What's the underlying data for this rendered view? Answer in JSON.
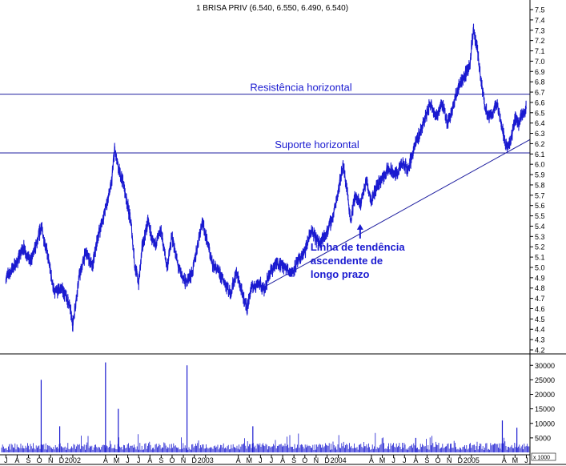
{
  "chart_data": {
    "type": "line",
    "title": "1 BRISA PRIV (6.540, 6.550, 6.490, 6.540)",
    "series": [
      {
        "name": "",
        "points": [
          [
            "2001-07-15",
            4.9
          ],
          [
            "2001-08-15",
            5.05
          ],
          [
            "2001-09-01",
            5.2
          ],
          [
            "2001-09-20",
            5.05
          ],
          [
            "2001-10-10",
            5.25
          ],
          [
            "2001-10-20",
            5.4
          ],
          [
            "2001-11-05",
            5.15
          ],
          [
            "2001-11-25",
            4.75
          ],
          [
            "2001-12-15",
            4.8
          ],
          [
            "2002-01-05",
            4.65
          ],
          [
            "2002-01-15",
            4.45
          ],
          [
            "2002-02-01",
            4.9
          ],
          [
            "2002-02-20",
            5.15
          ],
          [
            "2002-03-10",
            5.0
          ],
          [
            "2002-03-25",
            5.3
          ],
          [
            "2002-04-10",
            5.5
          ],
          [
            "2002-05-01",
            5.8
          ],
          [
            "2002-05-10",
            6.15
          ],
          [
            "2002-05-20",
            5.95
          ],
          [
            "2002-06-01",
            5.85
          ],
          [
            "2002-06-15",
            5.6
          ],
          [
            "2002-06-25",
            5.4
          ],
          [
            "2002-07-05",
            5.0
          ],
          [
            "2002-07-15",
            4.85
          ],
          [
            "2002-07-25",
            5.2
          ],
          [
            "2002-08-10",
            5.45
          ],
          [
            "2002-08-25",
            5.2
          ],
          [
            "2002-09-15",
            5.35
          ],
          [
            "2002-10-01",
            5.0
          ],
          [
            "2002-10-15",
            5.3
          ],
          [
            "2002-11-01",
            5.0
          ],
          [
            "2002-11-20",
            4.85
          ],
          [
            "2002-12-10",
            4.95
          ],
          [
            "2003-01-05",
            5.45
          ],
          [
            "2003-01-20",
            5.25
          ],
          [
            "2003-02-01",
            5.05
          ],
          [
            "2003-02-20",
            4.95
          ],
          [
            "2003-03-10",
            4.85
          ],
          [
            "2003-03-25",
            4.75
          ],
          [
            "2003-04-10",
            4.95
          ],
          [
            "2003-04-25",
            4.75
          ],
          [
            "2003-05-10",
            4.6
          ],
          [
            "2003-05-20",
            4.8
          ],
          [
            "2003-06-10",
            4.85
          ],
          [
            "2003-06-25",
            4.78
          ],
          [
            "2003-07-10",
            4.95
          ],
          [
            "2003-08-01",
            5.05
          ],
          [
            "2003-08-20",
            5.0
          ],
          [
            "2003-09-10",
            4.95
          ],
          [
            "2003-09-25",
            5.05
          ],
          [
            "2003-10-15",
            5.15
          ],
          [
            "2003-11-01",
            5.35
          ],
          [
            "2003-11-20",
            5.25
          ],
          [
            "2003-12-10",
            5.3
          ],
          [
            "2004-01-01",
            5.5
          ],
          [
            "2004-01-15",
            5.75
          ],
          [
            "2004-01-28",
            6.0
          ],
          [
            "2004-02-08",
            5.75
          ],
          [
            "2004-02-18",
            5.45
          ],
          [
            "2004-03-01",
            5.7
          ],
          [
            "2004-03-15",
            5.6
          ],
          [
            "2004-04-01",
            5.85
          ],
          [
            "2004-04-15",
            5.65
          ],
          [
            "2004-05-01",
            5.8
          ],
          [
            "2004-06-01",
            5.95
          ],
          [
            "2004-06-20",
            5.9
          ],
          [
            "2004-07-10",
            6.0
          ],
          [
            "2004-07-25",
            5.95
          ],
          [
            "2004-08-10",
            6.15
          ],
          [
            "2004-08-25",
            6.3
          ],
          [
            "2004-09-10",
            6.45
          ],
          [
            "2004-09-25",
            6.6
          ],
          [
            "2004-10-10",
            6.45
          ],
          [
            "2004-10-25",
            6.6
          ],
          [
            "2004-11-10",
            6.4
          ],
          [
            "2004-11-25",
            6.55
          ],
          [
            "2004-12-10",
            6.75
          ],
          [
            "2004-12-25",
            6.85
          ],
          [
            "2005-01-10",
            6.95
          ],
          [
            "2005-01-20",
            7.3
          ],
          [
            "2005-02-01",
            7.1
          ],
          [
            "2005-02-10",
            6.8
          ],
          [
            "2005-02-20",
            6.6
          ],
          [
            "2005-03-01",
            6.45
          ],
          [
            "2005-03-15",
            6.5
          ],
          [
            "2005-03-25",
            6.6
          ],
          [
            "2005-04-05",
            6.45
          ],
          [
            "2005-04-15",
            6.25
          ],
          [
            "2005-04-25",
            6.15
          ],
          [
            "2005-05-05",
            6.25
          ],
          [
            "2005-05-15",
            6.45
          ],
          [
            "2005-05-25",
            6.4
          ],
          [
            "2005-06-05",
            6.5
          ],
          [
            "2005-06-15",
            6.54
          ]
        ]
      }
    ],
    "volume": [
      [
        "2001-10-20",
        25000
      ],
      [
        "2001-12-10",
        9000
      ],
      [
        "2002-04-15",
        31000
      ],
      [
        "2002-05-20",
        15000
      ],
      [
        "2002-11-25",
        30000
      ],
      [
        "2003-05-25",
        9000
      ],
      [
        "2004-08-15",
        5000
      ],
      [
        "2005-04-10",
        11000
      ],
      [
        "2005-05-20",
        8500
      ]
    ],
    "price_axis": {
      "ylim": [
        4.2,
        7.5
      ],
      "ticks": [
        "7.5",
        "7.4",
        "7.3",
        "7.2",
        "7.1",
        "7.0",
        "6.9",
        "6.8",
        "6.7",
        "6.6",
        "6.5",
        "6.4",
        "6.3",
        "6.2",
        "6.1",
        "6.0",
        "5.9",
        "5.8",
        "5.7",
        "5.6",
        "5.5",
        "5.4",
        "5.3",
        "5.2",
        "5.1",
        "5.0",
        "4.9",
        "4.8",
        "4.7",
        "4.6",
        "4.5",
        "4.4",
        "4.3",
        "4.2"
      ]
    },
    "volume_axis": {
      "ylim": [
        0,
        32000
      ],
      "ticks": [
        "30000",
        "25000",
        "20000",
        "15000",
        "10000",
        "5000"
      ],
      "unit_label": "x 1000"
    },
    "x_axis": {
      "range": [
        "2001-07-01",
        "2005-06-25"
      ],
      "ticks": [
        {
          "date": "2001-07-15",
          "label": "J"
        },
        {
          "date": "2001-08-15",
          "label": "A"
        },
        {
          "date": "2001-09-15",
          "label": "S"
        },
        {
          "date": "2001-10-15",
          "label": "O"
        },
        {
          "date": "2001-11-15",
          "label": "N"
        },
        {
          "date": "2001-12-15",
          "label": "D"
        },
        {
          "date": "2002-01-15",
          "label": "2002"
        },
        {
          "date": "2002-04-15",
          "label": "A"
        },
        {
          "date": "2002-05-15",
          "label": "M"
        },
        {
          "date": "2002-06-15",
          "label": "J"
        },
        {
          "date": "2002-07-15",
          "label": "J"
        },
        {
          "date": "2002-08-15",
          "label": "A"
        },
        {
          "date": "2002-09-15",
          "label": "S"
        },
        {
          "date": "2002-10-15",
          "label": "O"
        },
        {
          "date": "2002-11-15",
          "label": "N"
        },
        {
          "date": "2002-12-15",
          "label": "D"
        },
        {
          "date": "2003-01-15",
          "label": "2003"
        },
        {
          "date": "2003-04-15",
          "label": "A"
        },
        {
          "date": "2003-05-15",
          "label": "M"
        },
        {
          "date": "2003-06-15",
          "label": "J"
        },
        {
          "date": "2003-07-15",
          "label": "J"
        },
        {
          "date": "2003-08-15",
          "label": "A"
        },
        {
          "date": "2003-09-15",
          "label": "S"
        },
        {
          "date": "2003-10-15",
          "label": "O"
        },
        {
          "date": "2003-11-15",
          "label": "N"
        },
        {
          "date": "2003-12-15",
          "label": "D"
        },
        {
          "date": "2004-01-15",
          "label": "2004"
        },
        {
          "date": "2004-04-15",
          "label": "A"
        },
        {
          "date": "2004-05-15",
          "label": "M"
        },
        {
          "date": "2004-06-15",
          "label": "J"
        },
        {
          "date": "2004-07-15",
          "label": "J"
        },
        {
          "date": "2004-08-15",
          "label": "A"
        },
        {
          "date": "2004-09-15",
          "label": "S"
        },
        {
          "date": "2004-10-15",
          "label": "O"
        },
        {
          "date": "2004-11-15",
          "label": "N"
        },
        {
          "date": "2004-12-15",
          "label": "D"
        },
        {
          "date": "2005-01-15",
          "label": "2005"
        },
        {
          "date": "2005-04-15",
          "label": "A"
        },
        {
          "date": "2005-05-15",
          "label": "M"
        },
        {
          "date": "2005-06-15",
          "label": "J"
        }
      ]
    },
    "horizontal_lines": [
      {
        "value": 6.68,
        "label": "Resistência horizontal"
      },
      {
        "value": 6.11,
        "label": "Suporte horizontal"
      }
    ],
    "trendline": {
      "from": [
        "2003-06-20",
        4.8
      ],
      "to": [
        "2005-06-25",
        6.24
      ]
    },
    "annotation": {
      "lines": [
        "Linha de tendência",
        "ascendente de",
        "longo prazo"
      ],
      "arrow_target": [
        "2004-03-15",
        5.42
      ]
    },
    "grid": false,
    "colors": {
      "series": "#1a1ad0",
      "reference_lines": "#2020a0",
      "annotation_text": "#1a1ad0",
      "axis": "#000000",
      "background": "#ffffff"
    }
  }
}
